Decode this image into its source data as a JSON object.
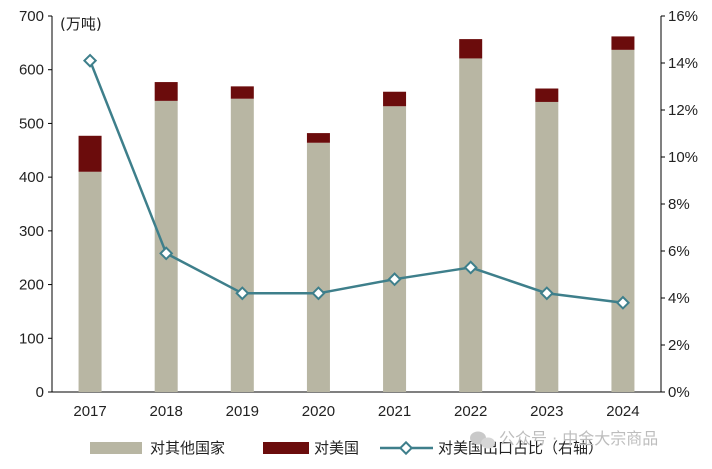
{
  "chart_data": {
    "type": "bar",
    "stacked": true,
    "unit_label": "(万吨)",
    "categories": [
      "2017",
      "2018",
      "2019",
      "2020",
      "2021",
      "2022",
      "2023",
      "2024"
    ],
    "series": [
      {
        "name": "对其他国家",
        "type": "bar",
        "axis": "left",
        "color": "#b8b6a3",
        "values": [
          410,
          542,
          546,
          464,
          532,
          621,
          540,
          637
        ]
      },
      {
        "name": "对美国",
        "type": "bar",
        "axis": "left",
        "color": "#6b0c0c",
        "values": [
          67,
          35,
          23,
          18,
          27,
          36,
          25,
          25
        ]
      },
      {
        "name": "对美国出口占比（右轴）",
        "type": "line",
        "axis": "right",
        "color": "#3e7f8b",
        "values": [
          14.1,
          5.9,
          4.2,
          4.2,
          4.8,
          5.3,
          4.2,
          3.8
        ]
      }
    ],
    "ylim_left": [
      0,
      700
    ],
    "yticks_left": [
      "0",
      "100",
      "200",
      "300",
      "400",
      "500",
      "600",
      "700"
    ],
    "ylim_right": [
      0,
      16
    ],
    "yticks_right": [
      "0%",
      "2%",
      "4%",
      "6%",
      "8%",
      "10%",
      "12%",
      "14%",
      "16%"
    ],
    "grid": false,
    "legend_position": "bottom"
  },
  "watermark": {
    "text": "公众号 · 中金大宗商品",
    "icon": "wechat-icon"
  }
}
